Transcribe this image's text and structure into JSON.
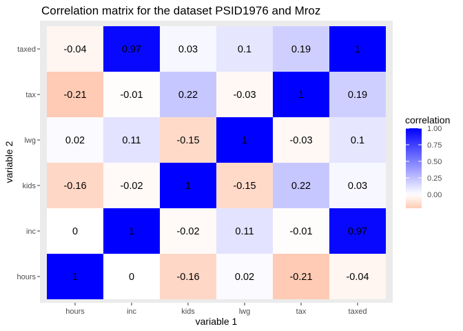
{
  "chart_data": {
    "type": "heatmap",
    "title": "Correlation matrix for the dataset PSID1976 and Mroz",
    "xlabel": "variable 1",
    "ylabel": "variable 2",
    "x_categories": [
      "hours",
      "inc",
      "kids",
      "lwg",
      "tax",
      "taxed"
    ],
    "y_categories": [
      "taxed",
      "tax",
      "lwg",
      "kids",
      "inc",
      "hours"
    ],
    "values": {
      "hours": {
        "hours": 1,
        "inc": 0,
        "kids": -0.16,
        "lwg": 0.02,
        "tax": -0.21,
        "taxed": -0.04
      },
      "inc": {
        "hours": 0,
        "inc": 1,
        "kids": -0.02,
        "lwg": 0.11,
        "tax": -0.01,
        "taxed": 0.97
      },
      "kids": {
        "hours": -0.16,
        "inc": -0.02,
        "kids": 1,
        "lwg": -0.15,
        "tax": 0.22,
        "taxed": 0.03
      },
      "lwg": {
        "hours": 0.02,
        "inc": 0.11,
        "kids": -0.15,
        "lwg": 1,
        "tax": -0.03,
        "taxed": 0.1
      },
      "tax": {
        "hours": -0.21,
        "inc": -0.01,
        "kids": 0.22,
        "lwg": -0.03,
        "tax": 1,
        "taxed": 0.19
      },
      "taxed": {
        "hours": -0.04,
        "inc": 0.97,
        "kids": 0.03,
        "lwg": 0.1,
        "tax": 0.19,
        "taxed": 1
      }
    },
    "legend": {
      "title": "correlation",
      "ticks": [
        "1.00",
        "0.75",
        "0.50",
        "0.25",
        "0.00"
      ],
      "tick_values": [
        1.0,
        0.75,
        0.5,
        0.25,
        0.0
      ],
      "range": [
        -0.21,
        1.0
      ],
      "placement": "right"
    },
    "colors": {
      "low": "#ffcbb4",
      "mid": "#ffffff",
      "high": "#0000ff",
      "panel_background": "#ebebeb"
    }
  }
}
